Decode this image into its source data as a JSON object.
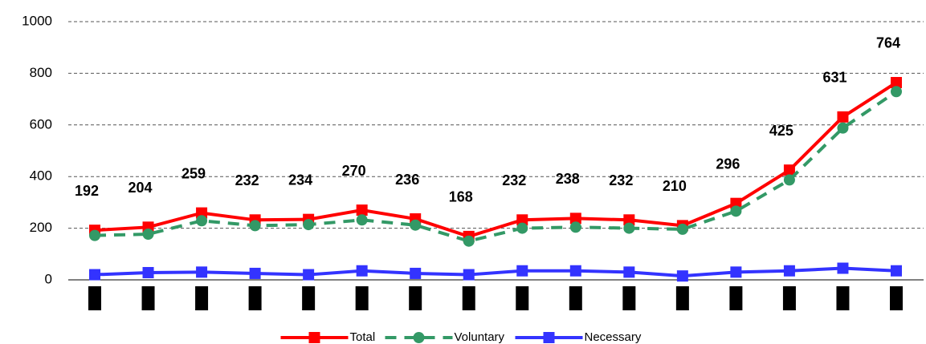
{
  "chart_data": {
    "type": "line",
    "categories": [
      null,
      null,
      null,
      null,
      null,
      null,
      null,
      null,
      null,
      null,
      null,
      null,
      null,
      null,
      null,
      null
    ],
    "series": [
      {
        "name": "Total",
        "color": "#ff0000",
        "marker": "square",
        "dash": false,
        "data_labels": true,
        "values": [
          192,
          204,
          259,
          232,
          234,
          270,
          236,
          168,
          232,
          238,
          232,
          210,
          296,
          425,
          631,
          764
        ]
      },
      {
        "name": "Voluntary",
        "color": "#339966",
        "marker": "circle",
        "dash": true,
        "data_labels": false,
        "values": [
          172,
          177,
          229,
          210,
          214,
          232,
          212,
          150,
          200,
          204,
          200,
          196,
          266,
          387,
          588,
          729
        ]
      },
      {
        "name": "Necessary",
        "color": "#3333ff",
        "marker": "square",
        "dash": false,
        "data_labels": false,
        "values": [
          20,
          28,
          30,
          25,
          20,
          35,
          25,
          20,
          35,
          35,
          30,
          15,
          30,
          35,
          45,
          35
        ]
      }
    ],
    "ylim": [
      0,
      1000
    ],
    "yticks": [
      0,
      200,
      400,
      600,
      800,
      1000
    ],
    "grid": true,
    "legend": "bottom"
  }
}
